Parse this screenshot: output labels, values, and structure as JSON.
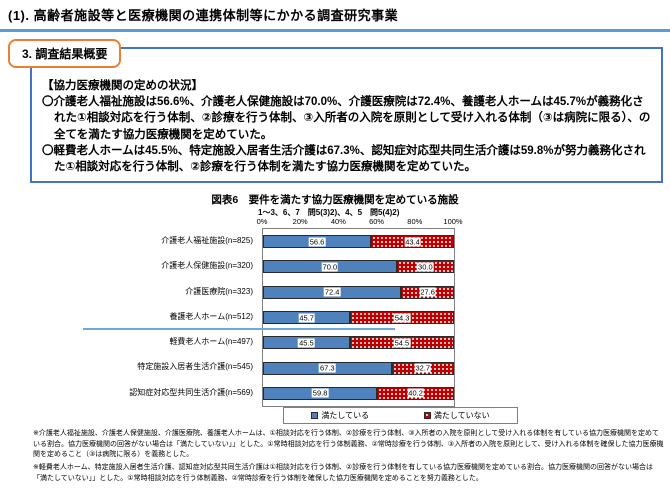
{
  "header": {
    "title": "(1). 高齢者施設等と医療機関の連携体制等にかかる調査研究事業",
    "section_label": "3. 調査結果概要"
  },
  "summary": {
    "heading": "【協力医療機関の定めの状況】",
    "paragraphs": [
      "〇介護老人福祉施設は56.6%、介護老人保健施設は70.0%、介護医療院は72.4%、養護老人ホームは45.7%が義務化された①相談対応を行う体制、②診療を行う体制、③入所者の入院を原則として受け入れる体制（③は病院に限る）、の全てを満たす協力医療機関を定めていた。",
      "〇軽費老人ホームは45.5%、特定施設入居者生活介護は67.3%、認知症対応型共同生活介護は59.8%が努力義務化された①相談対応を行う体制、②診療を行う体制を満たす協力医療機関を定めていた。"
    ]
  },
  "chart_data": {
    "type": "bar",
    "orientation": "horizontal",
    "stacked": true,
    "title": "図表6　要件を満たす協力医療機関を定めている施設",
    "subtitle": "1～3、6、7　問5(3)2)、4、5　問5(4)2)",
    "categories": [
      "介護老人福祉施設(n=825)",
      "介護老人保健施設(n=320)",
      "介護医療院(n=323)",
      "養護老人ホーム(n=512)",
      "軽費老人ホーム(n=497)",
      "特定施設入居者生活介護(n=545)",
      "認知症対応型共同生活介護(n=569)"
    ],
    "series": [
      {
        "name": "満たしている",
        "color": "#4f81bd",
        "pattern": "solid",
        "values": [
          56.6,
          70.0,
          72.4,
          45.7,
          45.5,
          67.3,
          59.8
        ]
      },
      {
        "name": "満たしていない",
        "color": "#c00000",
        "pattern": "white-dots",
        "values": [
          43.4,
          30.0,
          27.6,
          54.3,
          54.5,
          32.7,
          40.2
        ]
      }
    ],
    "x_ticks": [
      "0%",
      "20%",
      "40%",
      "60%",
      "80%",
      "100%"
    ],
    "xlim": [
      0,
      100
    ],
    "legend_position": "bottom",
    "value_labels": true,
    "divider_after_category_index": 3
  },
  "footnotes": [
    "※介護老人福祉施設、介護老人保健施設、介護医療院、養護老人ホームは、①相談対応を行う体制、②診療を行う体制、③入所者の入院を原則として受け入れる体制を有している協力医療機関を定めている割合。協力医療機関の回答がない場合は「満たしていない」」とした。①常時相談対応を行う体制義務、②常時診療を行う体制、③入所者の入院を原則として、受け入れる体制を確保した協力医療機関を定めること（③は病院に限る）を義務とした。",
    "※軽費老人ホーム、特定施設入居者生活介護、認知症対応型共同生活介護は①相談対応を行う体制、②診療を行う体制を有している協力医療機関を定めている割合。協力医療機関の回答がない場合は「満たしていない」」とした。①常時相談対応を行う体制義務、②常時診療を行う体制を確保した協力医療機関を定めることを努力義務とした。"
  ]
}
